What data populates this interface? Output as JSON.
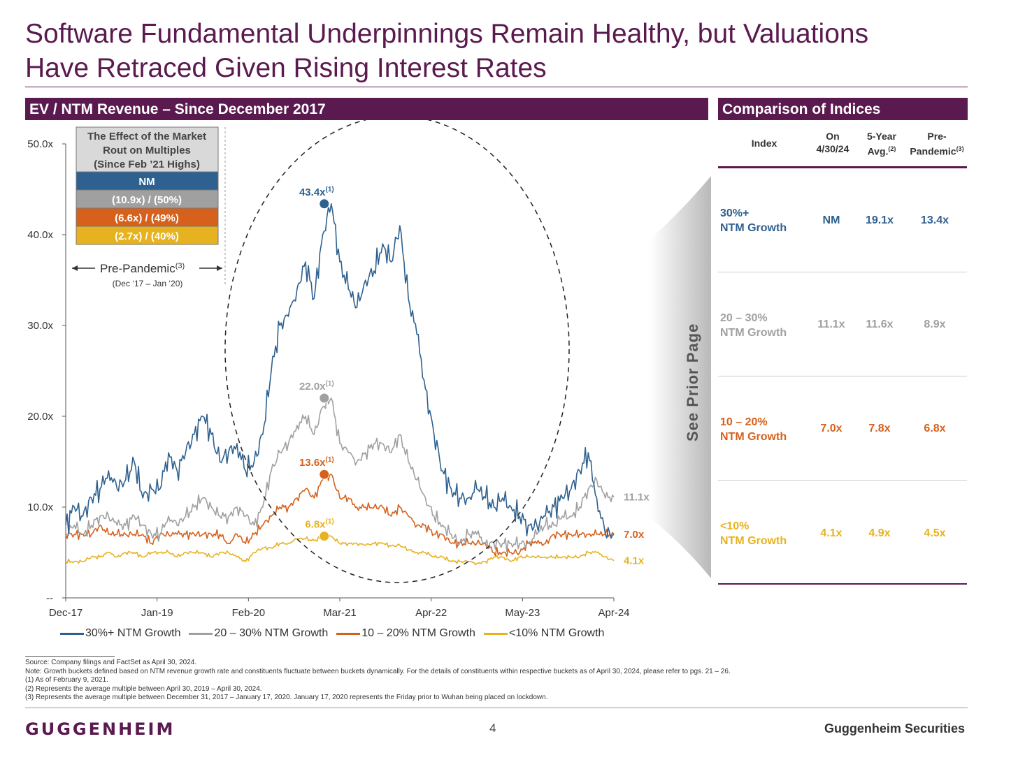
{
  "title_line1": "Software Fundamental Underpinnings Remain Healthy, but Valuations",
  "title_line2": "Have Retraced Given Rising Interest Rates",
  "left_banner": "EV / NTM Revenue – Since December 2017",
  "right_banner": "Comparison of Indices",
  "colors": {
    "brand": "#5b1a4f",
    "s30": "#2e6190",
    "s20": "#a0a0a0",
    "s10": "#d5611c",
    "s0": "#e7b21f"
  },
  "effect_box": {
    "header_lines": [
      "The Effect of the Market",
      "Rout on Multiples",
      "(Since Feb ’21 Highs)"
    ],
    "rows": [
      "NM",
      "(10.9x) / (50%)",
      "(6.6x) / (49%)",
      "(2.7x) / (40%)"
    ]
  },
  "pre_pandemic": {
    "label": "Pre-Pandemic",
    "sup": "(3)",
    "range": "(Dec ‘17 – Jan ‘20)"
  },
  "side_label": "See Prior Page",
  "chart_data": {
    "type": "line",
    "x_ticks": [
      "Dec-17",
      "Jan-19",
      "Feb-20",
      "Mar-21",
      "Apr-22",
      "May-23",
      "Apr-24"
    ],
    "y_ticks": [
      "--",
      "10.0x",
      "20.0x",
      "30.0x",
      "40.0x",
      "50.0x"
    ],
    "ylim": [
      0,
      50
    ],
    "series": [
      {
        "name": "30%+ NTM Growth",
        "color": "#2e6190",
        "end_label": "",
        "values": [
          8,
          10,
          9,
          11,
          12,
          14,
          12,
          13,
          15,
          11,
          12,
          12,
          16,
          14,
          16,
          18,
          20,
          18,
          15,
          16,
          17,
          14,
          15,
          18,
          25,
          30,
          31,
          34,
          37,
          33,
          40,
          43.4,
          37,
          34,
          32,
          35,
          36,
          39,
          37,
          41,
          33,
          29,
          23,
          18,
          14,
          12,
          11,
          11,
          12,
          11,
          10,
          11,
          10,
          9,
          8,
          8,
          9,
          10,
          11,
          12,
          14,
          16,
          11,
          7,
          7
        ]
      },
      {
        "name": "20 – 30% NTM Growth",
        "color": "#a0a0a0",
        "end_label": "11.1x",
        "values": [
          7,
          8,
          7,
          8,
          9,
          9,
          8,
          8,
          9,
          8,
          7,
          7,
          9,
          8,
          9,
          10,
          11,
          10,
          9,
          9,
          10,
          9,
          8,
          10,
          14,
          16,
          17,
          19,
          20,
          18,
          21,
          22,
          17,
          16,
          15,
          16,
          17,
          17,
          16,
          18,
          15,
          13,
          11,
          9,
          8,
          7,
          6,
          7,
          7,
          6,
          6,
          6,
          6,
          6,
          6,
          7,
          8,
          8,
          9,
          9,
          10,
          12,
          13,
          11,
          11.1
        ]
      },
      {
        "name": "10 – 20% NTM Growth",
        "color": "#d5611c",
        "end_label": "7.0x",
        "values": [
          7,
          7,
          7,
          7,
          8,
          7,
          7,
          7,
          7,
          7,
          6,
          7,
          7,
          7,
          7,
          7,
          7,
          7,
          7,
          6,
          7,
          6,
          7,
          8,
          9,
          10,
          10,
          11,
          12,
          11,
          13,
          13.6,
          11,
          11,
          10,
          10,
          10,
          10,
          9,
          10,
          9,
          8,
          8,
          7,
          7,
          6,
          6,
          6,
          6,
          6,
          5,
          5,
          5,
          5,
          6,
          6,
          6,
          7,
          7,
          7,
          7,
          7,
          7,
          7,
          7
        ]
      },
      {
        "name": "<10% NTM Growth",
        "color": "#e7b21f",
        "end_label": "4.1x",
        "values": [
          4,
          4,
          4,
          4.5,
          4.5,
          5,
          4.5,
          5,
          5,
          4.5,
          5,
          5,
          5,
          4.5,
          5,
          5,
          5,
          4.5,
          5,
          5,
          4.5,
          4,
          5,
          5.5,
          5.5,
          6,
          6,
          6.5,
          6.5,
          6.3,
          6.7,
          6.8,
          6,
          6,
          6,
          5.8,
          6,
          6,
          5.7,
          5.8,
          5.3,
          5,
          5,
          4.5,
          4.5,
          4,
          4,
          4,
          3.8,
          4,
          4.5,
          4.5,
          4,
          4.5,
          4.5,
          4.5,
          4.5,
          4.5,
          4.5,
          4.5,
          4.5,
          5,
          5,
          4.5,
          4.1
        ]
      }
    ],
    "peak_markers": [
      {
        "series": 0,
        "value": 43.4,
        "x_index": 31,
        "label": "43.4x",
        "sup": "(1)"
      },
      {
        "series": 1,
        "value": 22.0,
        "x_index": 31,
        "label": "22.0x",
        "sup": "(1)"
      },
      {
        "series": 2,
        "value": 13.6,
        "x_index": 31,
        "label": "13.6x",
        "sup": "(1)"
      },
      {
        "series": 3,
        "value": 6.8,
        "x_index": 31,
        "label": "6.8x",
        "sup": "(1)"
      }
    ]
  },
  "comparison": {
    "headers": [
      {
        "lines": [
          "Index"
        ],
        "sup": ""
      },
      {
        "lines": [
          "On",
          "4/30/24"
        ],
        "sup": ""
      },
      {
        "lines": [
          "5-Year",
          "Avg."
        ],
        "sup": "(2)"
      },
      {
        "lines": [
          "Pre-",
          "Pandemic"
        ],
        "sup": "(3)"
      }
    ],
    "rows": [
      {
        "label_lines": [
          "30%+",
          "NTM Growth"
        ],
        "color": "#2e6190",
        "values": [
          "NM",
          "19.1x",
          "13.4x"
        ]
      },
      {
        "label_lines": [
          "20 – 30%",
          "NTM Growth"
        ],
        "color": "#a0a0a0",
        "values": [
          "11.1x",
          "11.6x",
          "8.9x"
        ]
      },
      {
        "label_lines": [
          "10 – 20%",
          "NTM Growth"
        ],
        "color": "#d5611c",
        "values": [
          "7.0x",
          "7.8x",
          "6.8x"
        ]
      },
      {
        "label_lines": [
          "<10%",
          "NTM Growth"
        ],
        "color": "#e7b21f",
        "values": [
          "4.1x",
          "4.9x",
          "4.5x"
        ]
      }
    ]
  },
  "footnotes": [
    "Source: Company filings and FactSet as April 30, 2024.",
    "Note: Growth buckets defined based on NTM revenue growth rate and constituents fluctuate between buckets dynamically. For the details of constituents within respective buckets as of April 30, 2024, please refer to pgs. 21 – 26.",
    "(1)      As of February 9, 2021.",
    "(2)      Represents the average multiple between April 30, 2019 – April 30, 2024.",
    "(3)      Represents the average multiple between December 31, 2017 – January 17, 2020. January 17, 2020 represents the Friday prior to Wuhan being placed on lockdown."
  ],
  "footer": {
    "logo": "GUGGENHEIM",
    "page": "4",
    "brand": "Guggenheim Securities"
  }
}
